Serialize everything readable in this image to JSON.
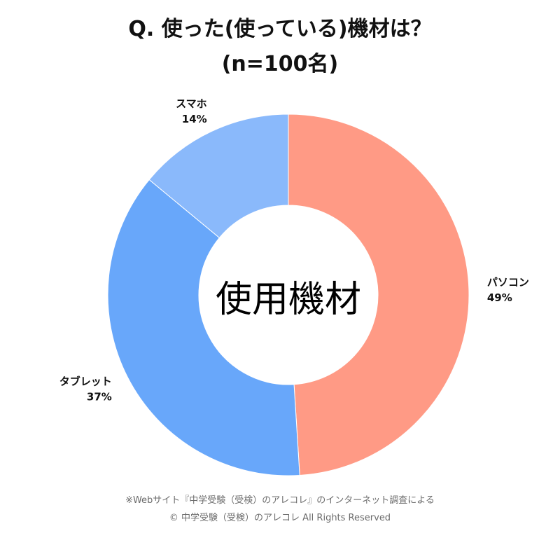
{
  "title": {
    "line1": "Q. 使った(使っている)機材は？",
    "line2": "(n=100名)"
  },
  "chart_data": {
    "type": "pie",
    "variant": "donut",
    "center_label": "使用機材",
    "unit": "%",
    "slices": [
      {
        "label": "パソコン",
        "value": 49,
        "display": "49%",
        "color": "#FF9A85"
      },
      {
        "label": "タブレット",
        "value": 37,
        "display": "37%",
        "color": "#68A7FA"
      },
      {
        "label": "スマホ",
        "value": 14,
        "display": "14%",
        "color": "#8AB9FB"
      }
    ],
    "start": "top",
    "direction": "clockwise"
  },
  "footer": {
    "note": "※Webサイト『中学受験（受検）のアレコレ』のインターネット調査による",
    "copyright": "© 中学受験（受検）のアレコレ All Rights Reserved"
  }
}
